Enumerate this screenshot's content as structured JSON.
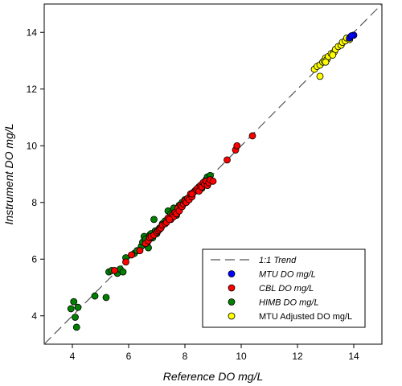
{
  "chart_data": {
    "type": "scatter",
    "xlabel": "Reference DO mg/L",
    "ylabel": "Instrument DO mg/L",
    "xlim": [
      3,
      15
    ],
    "ylim": [
      3,
      15
    ],
    "xticks": [
      "4",
      "6",
      "8",
      "10",
      "12",
      "14"
    ],
    "yticks": [
      "4",
      "6",
      "8",
      "10",
      "12",
      "14"
    ],
    "grid": false,
    "legend_position": "bottom-right",
    "trend": {
      "name": "1:1 Trend",
      "x": [
        3,
        15
      ],
      "y": [
        3,
        15
      ],
      "color": "#555555"
    },
    "series": [
      {
        "name": "MTU DO mg/L",
        "color": "#0000ff",
        "points": [
          [
            14.0,
            13.9
          ],
          [
            13.85,
            13.8
          ],
          [
            13.92,
            13.88
          ]
        ]
      },
      {
        "name": "CBL DO mg/L",
        "color": "#ff0000",
        "points": [
          [
            5.5,
            5.6
          ],
          [
            5.9,
            5.9
          ],
          [
            6.1,
            6.15
          ],
          [
            6.4,
            6.3
          ],
          [
            6.6,
            6.55
          ],
          [
            6.7,
            6.65
          ],
          [
            6.75,
            6.75
          ],
          [
            6.8,
            6.8
          ],
          [
            6.9,
            6.85
          ],
          [
            7.0,
            6.95
          ],
          [
            7.05,
            7.0
          ],
          [
            7.1,
            7.05
          ],
          [
            7.15,
            7.1
          ],
          [
            7.2,
            7.2
          ],
          [
            7.3,
            7.25
          ],
          [
            7.35,
            7.3
          ],
          [
            7.4,
            7.45
          ],
          [
            7.5,
            7.4
          ],
          [
            7.55,
            7.55
          ],
          [
            7.6,
            7.5
          ],
          [
            7.65,
            7.65
          ],
          [
            7.7,
            7.6
          ],
          [
            7.75,
            7.8
          ],
          [
            7.8,
            7.7
          ],
          [
            7.85,
            7.9
          ],
          [
            7.9,
            7.85
          ],
          [
            7.95,
            7.95
          ],
          [
            8.0,
            8.05
          ],
          [
            8.05,
            8.0
          ],
          [
            8.1,
            8.15
          ],
          [
            8.15,
            8.1
          ],
          [
            8.2,
            8.3
          ],
          [
            8.25,
            8.2
          ],
          [
            8.3,
            8.35
          ],
          [
            8.4,
            8.45
          ],
          [
            8.45,
            8.5
          ],
          [
            8.5,
            8.4
          ],
          [
            8.55,
            8.6
          ],
          [
            8.6,
            8.55
          ],
          [
            8.65,
            8.7
          ],
          [
            8.7,
            8.65
          ],
          [
            8.75,
            8.75
          ],
          [
            8.8,
            8.6
          ],
          [
            8.85,
            8.7
          ],
          [
            8.9,
            8.8
          ],
          [
            9.0,
            8.75
          ],
          [
            9.5,
            9.5
          ],
          [
            9.8,
            9.85
          ],
          [
            9.85,
            10.0
          ],
          [
            10.4,
            10.35
          ],
          [
            8.25,
            8.3
          ],
          [
            7.45,
            7.4
          ]
        ]
      },
      {
        "name": "HIMB DO mg/L",
        "color": "#008000",
        "points": [
          [
            3.95,
            4.25
          ],
          [
            4.05,
            4.5
          ],
          [
            4.1,
            3.95
          ],
          [
            4.15,
            3.6
          ],
          [
            4.2,
            4.3
          ],
          [
            4.8,
            4.7
          ],
          [
            5.2,
            4.65
          ],
          [
            5.3,
            5.55
          ],
          [
            5.4,
            5.6
          ],
          [
            5.6,
            5.5
          ],
          [
            5.7,
            5.65
          ],
          [
            5.8,
            5.55
          ],
          [
            5.9,
            6.05
          ],
          [
            6.2,
            6.2
          ],
          [
            6.3,
            6.3
          ],
          [
            6.45,
            6.45
          ],
          [
            6.5,
            6.6
          ],
          [
            6.55,
            6.8
          ],
          [
            6.6,
            6.7
          ],
          [
            6.65,
            6.5
          ],
          [
            6.7,
            6.4
          ],
          [
            6.75,
            6.85
          ],
          [
            6.8,
            6.9
          ],
          [
            6.85,
            6.75
          ],
          [
            6.9,
            7.4
          ],
          [
            6.95,
            7.0
          ],
          [
            7.0,
            6.9
          ],
          [
            7.1,
            7.1
          ],
          [
            7.2,
            7.25
          ],
          [
            7.3,
            7.35
          ],
          [
            7.4,
            7.7
          ],
          [
            7.5,
            7.6
          ],
          [
            7.6,
            7.8
          ],
          [
            7.7,
            7.55
          ],
          [
            7.8,
            7.9
          ],
          [
            7.9,
            8.0
          ],
          [
            8.0,
            8.1
          ],
          [
            8.2,
            8.25
          ],
          [
            8.35,
            8.4
          ],
          [
            8.5,
            8.55
          ],
          [
            8.6,
            8.5
          ],
          [
            8.75,
            8.8
          ],
          [
            8.8,
            8.9
          ],
          [
            8.9,
            8.95
          ]
        ]
      },
      {
        "name": "MTU Adjusted DO mg/L",
        "color": "#ffff00",
        "points": [
          [
            12.6,
            12.7
          ],
          [
            12.7,
            12.8
          ],
          [
            12.8,
            12.85
          ],
          [
            12.9,
            12.95
          ],
          [
            12.95,
            13.0
          ],
          [
            13.0,
            13.1
          ],
          [
            13.05,
            13.05
          ],
          [
            13.1,
            13.15
          ],
          [
            13.2,
            13.25
          ],
          [
            13.3,
            13.3
          ],
          [
            13.35,
            13.4
          ],
          [
            13.45,
            13.5
          ],
          [
            13.55,
            13.55
          ],
          [
            13.6,
            13.65
          ],
          [
            13.7,
            13.7
          ],
          [
            13.75,
            13.8
          ],
          [
            13.85,
            13.75
          ],
          [
            12.8,
            12.45
          ],
          [
            13.0,
            12.95
          ],
          [
            13.25,
            13.2
          ]
        ]
      }
    ]
  }
}
